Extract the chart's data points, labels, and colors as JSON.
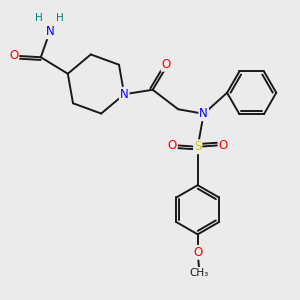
{
  "bg_color": "#ebebeb",
  "atom_colors": {
    "C": "#1a1a1a",
    "N": "#0000ff",
    "O": "#ff0000",
    "S": "#cccc00",
    "H": "#008080"
  },
  "bond_color": "#1a1a1a",
  "bond_width": 1.4,
  "fig_w": 3.0,
  "fig_h": 3.0,
  "dpi": 100,
  "xlim": [
    0,
    10
  ],
  "ylim": [
    0,
    10
  ]
}
